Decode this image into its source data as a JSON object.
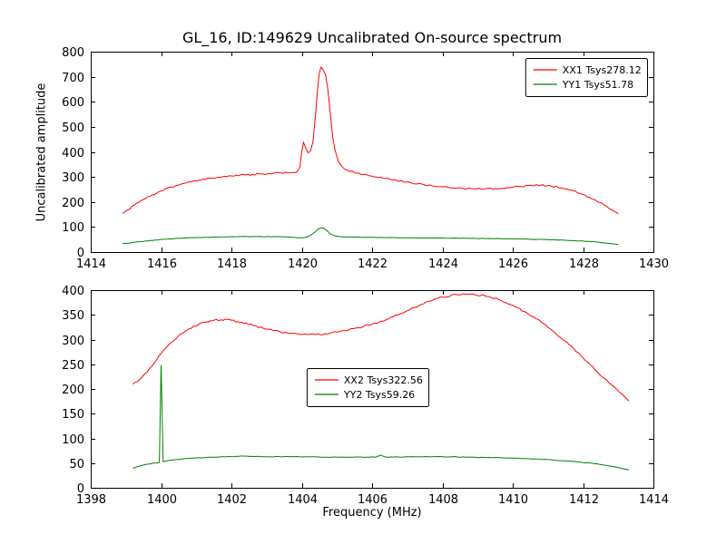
{
  "figure": {
    "title": "GL_16, ID:149629 Uncalibrated On-source spectrum",
    "ylabel": "Uncalibrated amplitude",
    "xlabel": "Frequency (MHz)",
    "background": "#ffffff",
    "axis_color": "#000000"
  },
  "chart_data": [
    {
      "type": "line",
      "xlabel": "",
      "ylabel": "Uncalibrated amplitude",
      "xlim": [
        1414,
        1430
      ],
      "ylim": [
        0,
        800
      ],
      "xticks": [
        1414,
        1416,
        1418,
        1420,
        1422,
        1424,
        1426,
        1428,
        1430
      ],
      "yticks": [
        0,
        100,
        200,
        300,
        400,
        500,
        600,
        700,
        800
      ],
      "grid": false,
      "legend_pos": "upper-right",
      "series": [
        {
          "name": "XX1 Tsys278.12",
          "color": "#ff0000",
          "noise": 6,
          "points": [
            [
              1414.9,
              155
            ],
            [
              1415.05,
              168
            ],
            [
              1415.25,
              188
            ],
            [
              1415.5,
              210
            ],
            [
              1415.75,
              228
            ],
            [
              1416.0,
              244
            ],
            [
              1416.3,
              260
            ],
            [
              1416.6,
              273
            ],
            [
              1416.9,
              283
            ],
            [
              1417.2,
              291
            ],
            [
              1417.6,
              298
            ],
            [
              1418.0,
              304
            ],
            [
              1418.4,
              308
            ],
            [
              1418.8,
              312
            ],
            [
              1419.2,
              315
            ],
            [
              1419.6,
              317
            ],
            [
              1419.85,
              318
            ],
            [
              1419.95,
              340
            ],
            [
              1420.0,
              400
            ],
            [
              1420.05,
              438
            ],
            [
              1420.1,
              420
            ],
            [
              1420.18,
              396
            ],
            [
              1420.25,
              404
            ],
            [
              1420.32,
              440
            ],
            [
              1420.4,
              560
            ],
            [
              1420.45,
              650
            ],
            [
              1420.5,
              715
            ],
            [
              1420.55,
              738
            ],
            [
              1420.6,
              730
            ],
            [
              1420.68,
              705
            ],
            [
              1420.75,
              640
            ],
            [
              1420.82,
              540
            ],
            [
              1420.88,
              460
            ],
            [
              1420.95,
              405
            ],
            [
              1421.05,
              360
            ],
            [
              1421.15,
              340
            ],
            [
              1421.3,
              327
            ],
            [
              1421.5,
              318
            ],
            [
              1421.75,
              310
            ],
            [
              1422.0,
              303
            ],
            [
              1422.3,
              295
            ],
            [
              1422.7,
              286
            ],
            [
              1423.1,
              277
            ],
            [
              1423.5,
              268
            ],
            [
              1423.9,
              261
            ],
            [
              1424.3,
              256
            ],
            [
              1424.7,
              253
            ],
            [
              1425.1,
              252
            ],
            [
              1425.5,
              253
            ],
            [
              1425.9,
              257
            ],
            [
              1426.2,
              262
            ],
            [
              1426.5,
              266
            ],
            [
              1426.8,
              267
            ],
            [
              1427.1,
              263
            ],
            [
              1427.4,
              256
            ],
            [
              1427.7,
              245
            ],
            [
              1428.0,
              230
            ],
            [
              1428.3,
              210
            ],
            [
              1428.6,
              188
            ],
            [
              1428.8,
              170
            ],
            [
              1429.0,
              153
            ]
          ]
        },
        {
          "name": "YY1 Tsys51.78",
          "color": "#008000",
          "noise": 1.5,
          "points": [
            [
              1414.9,
              33
            ],
            [
              1415.3,
              40
            ],
            [
              1415.7,
              46
            ],
            [
              1416.1,
              51
            ],
            [
              1416.5,
              55
            ],
            [
              1417.0,
              58
            ],
            [
              1417.5,
              60
            ],
            [
              1418.1,
              61
            ],
            [
              1418.7,
              62
            ],
            [
              1419.3,
              61
            ],
            [
              1419.7,
              60
            ],
            [
              1419.95,
              57
            ],
            [
              1420.1,
              58
            ],
            [
              1420.25,
              67
            ],
            [
              1420.4,
              83
            ],
            [
              1420.5,
              95
            ],
            [
              1420.6,
              97
            ],
            [
              1420.7,
              88
            ],
            [
              1420.8,
              73
            ],
            [
              1420.95,
              64
            ],
            [
              1421.1,
              61
            ],
            [
              1421.4,
              60
            ],
            [
              1421.8,
              59
            ],
            [
              1422.4,
              58
            ],
            [
              1423.0,
              57
            ],
            [
              1423.8,
              56
            ],
            [
              1424.6,
              55
            ],
            [
              1425.4,
              54
            ],
            [
              1426.2,
              52
            ],
            [
              1426.9,
              50
            ],
            [
              1427.5,
              47
            ],
            [
              1428.0,
              44
            ],
            [
              1428.4,
              40
            ],
            [
              1428.7,
              35
            ],
            [
              1429.0,
              30
            ]
          ]
        }
      ]
    },
    {
      "type": "line",
      "xlabel": "Frequency (MHz)",
      "ylabel": "",
      "xlim": [
        1398,
        1414
      ],
      "ylim": [
        0,
        400
      ],
      "xticks": [
        1398,
        1400,
        1402,
        1404,
        1406,
        1408,
        1410,
        1412,
        1414
      ],
      "yticks": [
        0,
        50,
        100,
        150,
        200,
        250,
        300,
        350,
        400
      ],
      "grid": false,
      "legend_pos": "center",
      "series": [
        {
          "name": "XX2 Tsys322.56",
          "color": "#ff0000",
          "noise": 3.5,
          "points": [
            [
              1399.2,
              210
            ],
            [
              1399.4,
              220
            ],
            [
              1399.6,
              234
            ],
            [
              1399.8,
              252
            ],
            [
              1400.0,
              272
            ],
            [
              1400.25,
              292
            ],
            [
              1400.5,
              308
            ],
            [
              1400.8,
              322
            ],
            [
              1401.1,
              332
            ],
            [
              1401.4,
              338
            ],
            [
              1401.7,
              340
            ],
            [
              1402.0,
              339
            ],
            [
              1402.3,
              335
            ],
            [
              1402.6,
              329
            ],
            [
              1402.9,
              323
            ],
            [
              1403.2,
              318
            ],
            [
              1403.6,
              313
            ],
            [
              1404.0,
              310
            ],
            [
              1404.4,
              310
            ],
            [
              1404.8,
              313
            ],
            [
              1405.2,
              318
            ],
            [
              1405.6,
              324
            ],
            [
              1406.0,
              331
            ],
            [
              1406.4,
              340
            ],
            [
              1406.8,
              352
            ],
            [
              1407.2,
              365
            ],
            [
              1407.6,
              377
            ],
            [
              1408.0,
              386
            ],
            [
              1408.4,
              391
            ],
            [
              1408.8,
              392
            ],
            [
              1409.2,
              389
            ],
            [
              1409.6,
              381
            ],
            [
              1410.0,
              369
            ],
            [
              1410.4,
              354
            ],
            [
              1410.8,
              336
            ],
            [
              1411.2,
              314
            ],
            [
              1411.6,
              290
            ],
            [
              1412.0,
              263
            ],
            [
              1412.4,
              235
            ],
            [
              1412.8,
              209
            ],
            [
              1413.1,
              190
            ],
            [
              1413.3,
              176
            ]
          ]
        },
        {
          "name": "YY2 Tsys59.26",
          "color": "#008000",
          "noise": 1,
          "points": [
            [
              1399.2,
              40
            ],
            [
              1399.5,
              46
            ],
            [
              1399.8,
              50
            ],
            [
              1399.95,
              51
            ],
            [
              1400.0,
              248
            ],
            [
              1400.06,
              53
            ],
            [
              1400.3,
              56
            ],
            [
              1400.7,
              59
            ],
            [
              1401.2,
              61
            ],
            [
              1401.8,
              63
            ],
            [
              1402.4,
              64
            ],
            [
              1403.0,
              63
            ],
            [
              1403.8,
              63
            ],
            [
              1404.6,
              62
            ],
            [
              1405.4,
              62
            ],
            [
              1406.1,
              62
            ],
            [
              1406.25,
              66
            ],
            [
              1406.4,
              62
            ],
            [
              1407.2,
              63
            ],
            [
              1408.0,
              63
            ],
            [
              1408.8,
              62
            ],
            [
              1409.6,
              61
            ],
            [
              1410.4,
              59
            ],
            [
              1411.0,
              57
            ],
            [
              1411.6,
              54
            ],
            [
              1412.2,
              50
            ],
            [
              1412.7,
              45
            ],
            [
              1413.0,
              41
            ],
            [
              1413.3,
              36
            ]
          ]
        }
      ]
    }
  ]
}
